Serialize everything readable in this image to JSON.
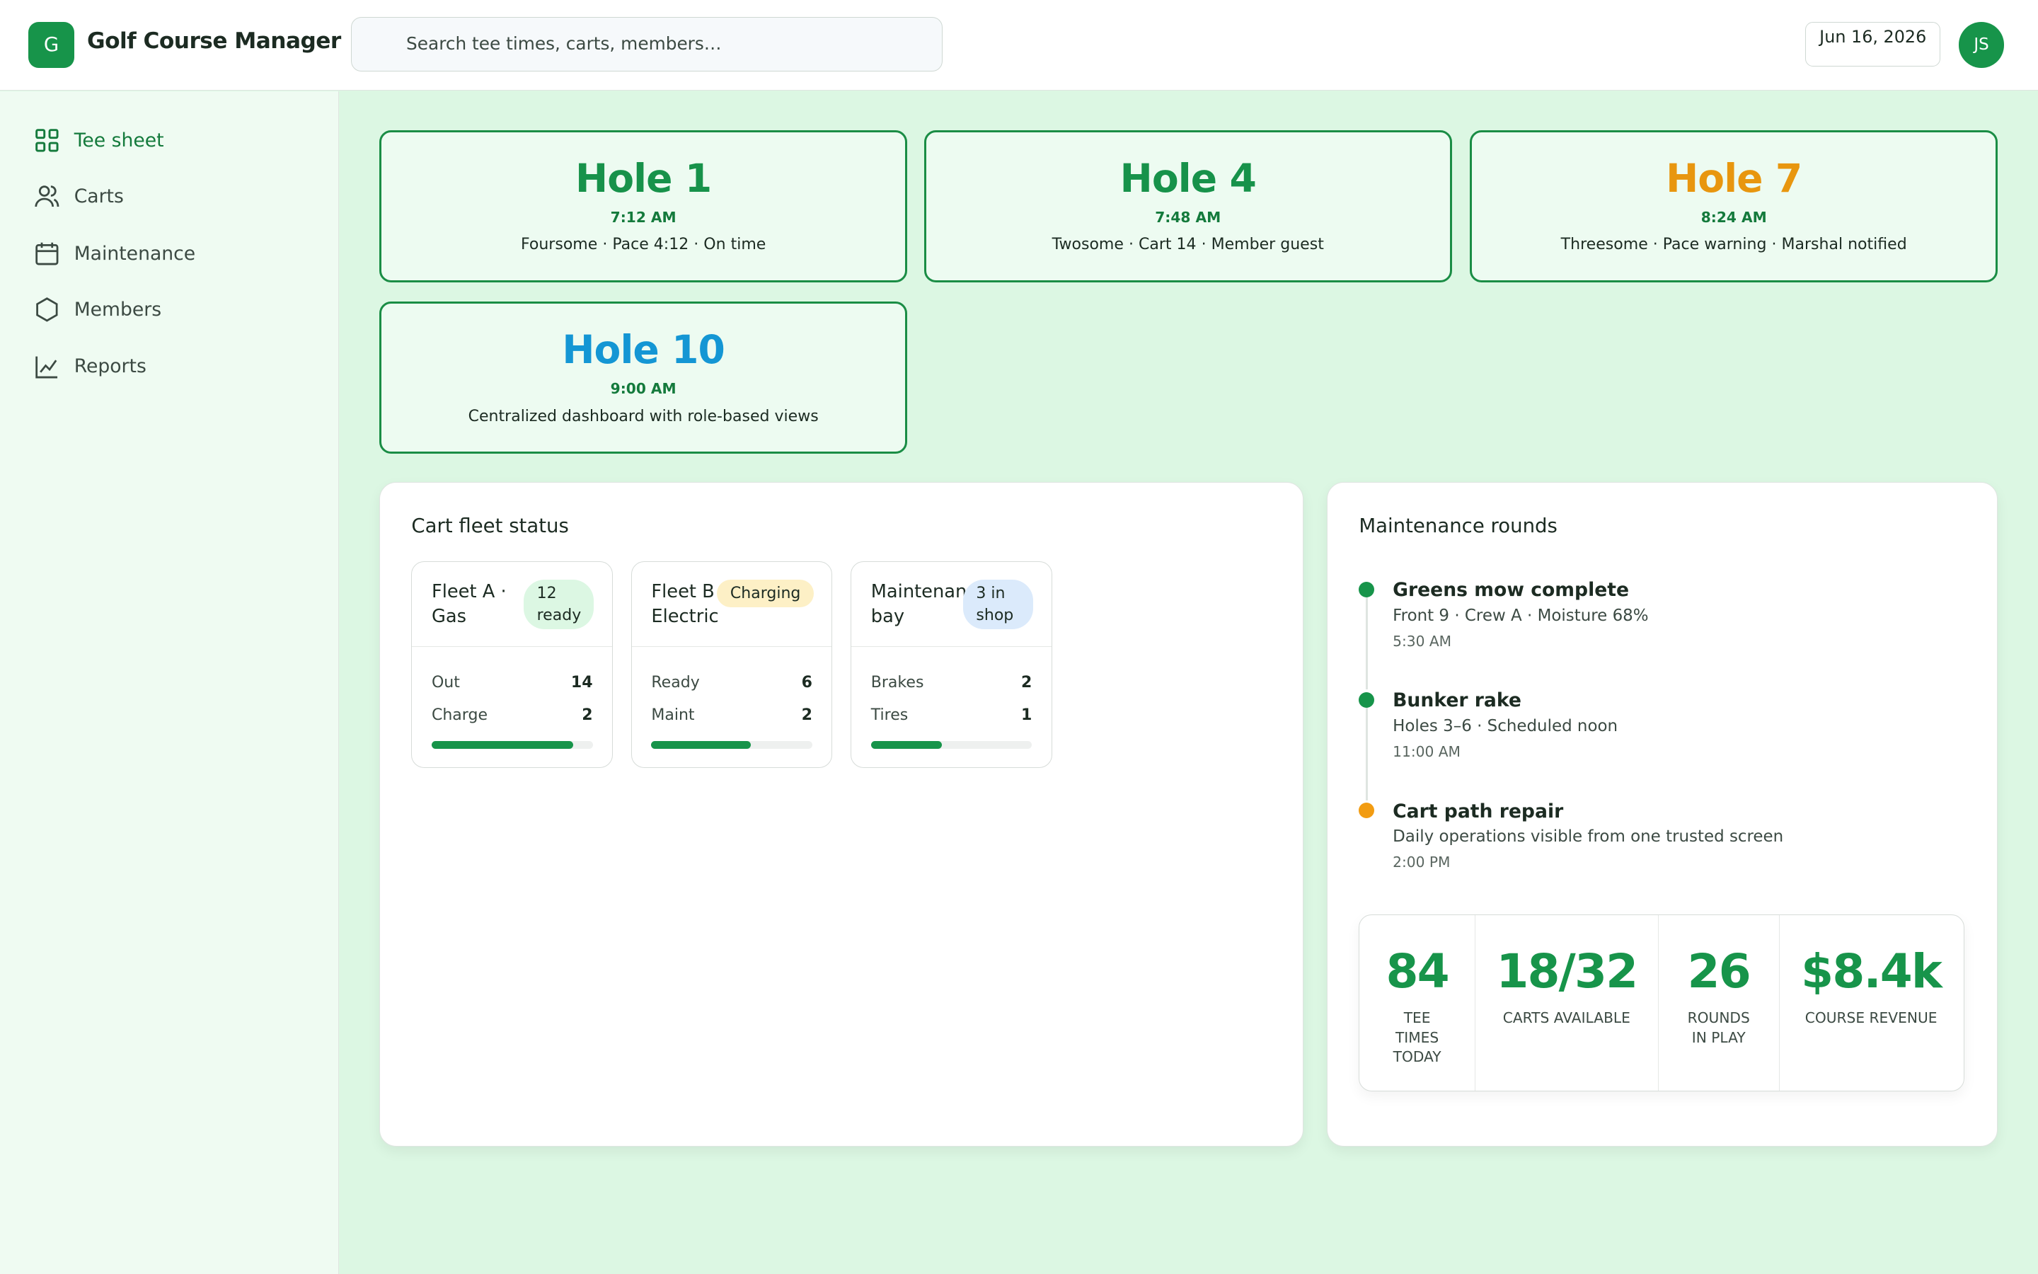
{
  "app": {
    "logo": "G",
    "title": "Golf Course Manager",
    "search_placeholder": "Search tee times, carts, members…",
    "date": "Jun 16, 2026",
    "avatar": "JS"
  },
  "nav": [
    {
      "label": "Tee sheet",
      "active": true
    },
    {
      "label": "Carts",
      "active": false
    },
    {
      "label": "Maintenance",
      "active": false
    },
    {
      "label": "Members",
      "active": false
    },
    {
      "label": "Reports",
      "active": false
    }
  ],
  "tee_cards": [
    {
      "hole": "Hole 1",
      "time": "7:12 AM",
      "detail": "Foursome · Pace 4:12 · On time",
      "color": "#17924a"
    },
    {
      "hole": "Hole 4",
      "time": "7:48 AM",
      "detail": "Twosome · Cart 14 · Member guest",
      "color": "#17924a"
    },
    {
      "hole": "Hole 7",
      "time": "8:24 AM",
      "detail": "Threesome · Pace warning · Marshal notified",
      "color": "#e8960f"
    },
    {
      "hole": "Hole 10",
      "time": "9:00 AM",
      "detail": "Centralized dashboard with role-based views",
      "color": "#1496d4"
    }
  ],
  "fleet": {
    "title": "Cart fleet status",
    "cards": [
      {
        "name": "Fleet A · Gas",
        "badge": "12 ready",
        "badge_color": "#dcf7e3",
        "rows": [
          {
            "label": "Out",
            "value": 14
          },
          {
            "label": "Charge",
            "value": 2
          }
        ],
        "progress": 88
      },
      {
        "name": "Fleet B · Electric",
        "badge": "Charging",
        "badge_color": "#fdf0c6",
        "rows": [
          {
            "label": "Ready",
            "value": 6
          },
          {
            "label": "Maint",
            "value": 2
          }
        ],
        "progress": 62
      },
      {
        "name": "Maintenance bay",
        "badge": "3 in shop",
        "badge_color": "#dbeafb",
        "rows": [
          {
            "label": "Brakes",
            "value": 2
          },
          {
            "label": "Tires",
            "value": 1
          }
        ],
        "progress": 44
      }
    ]
  },
  "maintenance": {
    "title": "Maintenance rounds",
    "items": [
      {
        "title": "Greens mow complete",
        "detail": "Front 9 · Crew A · Moisture 68%",
        "time": "5:30 AM",
        "color": "#17944a"
      },
      {
        "title": "Bunker rake",
        "detail": "Holes 3–6 · Scheduled noon",
        "time": "11:00 AM",
        "color": "#17944a"
      },
      {
        "title": "Cart path repair",
        "detail": "Daily operations visible from one trusted screen",
        "time": "2:00 PM",
        "color": "#f29c12"
      }
    ],
    "stats": [
      {
        "value": 84,
        "label": "TEE TIMES TODAY"
      },
      {
        "value": "18/32",
        "label": "CARTS AVAILABLE"
      },
      {
        "value": 26,
        "label": "ROUNDS IN PLAY"
      },
      {
        "value": "$8.4k",
        "label": "COURSE REVENUE"
      }
    ]
  }
}
